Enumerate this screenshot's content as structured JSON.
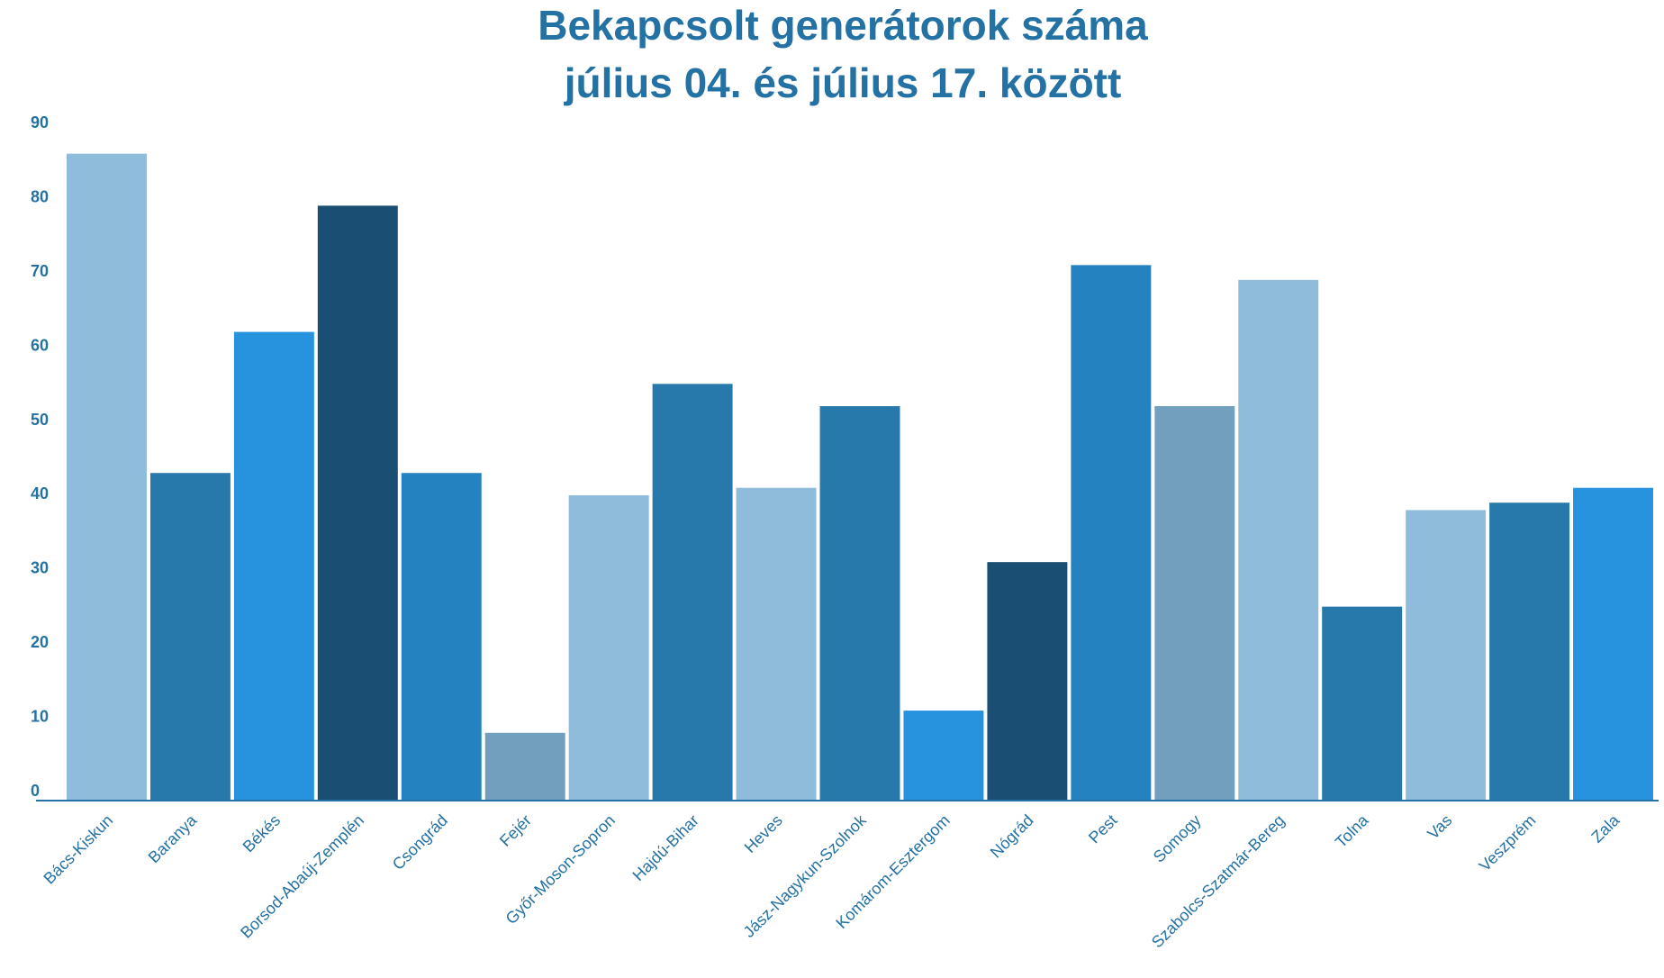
{
  "chart_data": {
    "type": "bar",
    "title": [
      "Bekapcsolt generátorok száma",
      "július 04. és július 17. között"
    ],
    "xlabel": "",
    "ylabel": "",
    "ylim": [
      0,
      90
    ],
    "yticks": [
      0,
      10,
      20,
      30,
      40,
      50,
      60,
      70,
      80,
      90
    ],
    "grid": false,
    "legend": "none",
    "categories": [
      "Bács-Kiskun",
      "Baranya",
      "Békés",
      "Borsod-Abaúj-Zemplén",
      "Csongrád",
      "Fejér",
      "Győr-Moson-Sopron",
      "Hajdú-Bihar",
      "Heves",
      "Jász-Nagykun-Szolnok",
      "Komárom-Esztergom",
      "Nógrád",
      "Pest",
      "Somogy",
      "Szabolcs-Szatmár-Bereg",
      "Tolna",
      "Vas",
      "Veszprém",
      "Zala"
    ],
    "values": [
      87,
      44,
      63,
      80,
      44,
      9,
      41,
      56,
      42,
      53,
      12,
      32,
      72,
      53,
      70,
      26,
      39,
      40,
      42
    ],
    "colors": [
      "#8fbcdb",
      "#2879ab",
      "#2793de",
      "#1a4e72",
      "#2582c1",
      "#739fbf",
      "#8fbcdb",
      "#2879ab",
      "#8fbcdb",
      "#2879ab",
      "#2793de",
      "#1a4e72",
      "#2582c1",
      "#739fbf",
      "#8fbcdb",
      "#2879ab",
      "#8fbcdb",
      "#2879ab",
      "#2793de"
    ],
    "axis_color": "#2471a3",
    "label_color": "#2471a3"
  }
}
